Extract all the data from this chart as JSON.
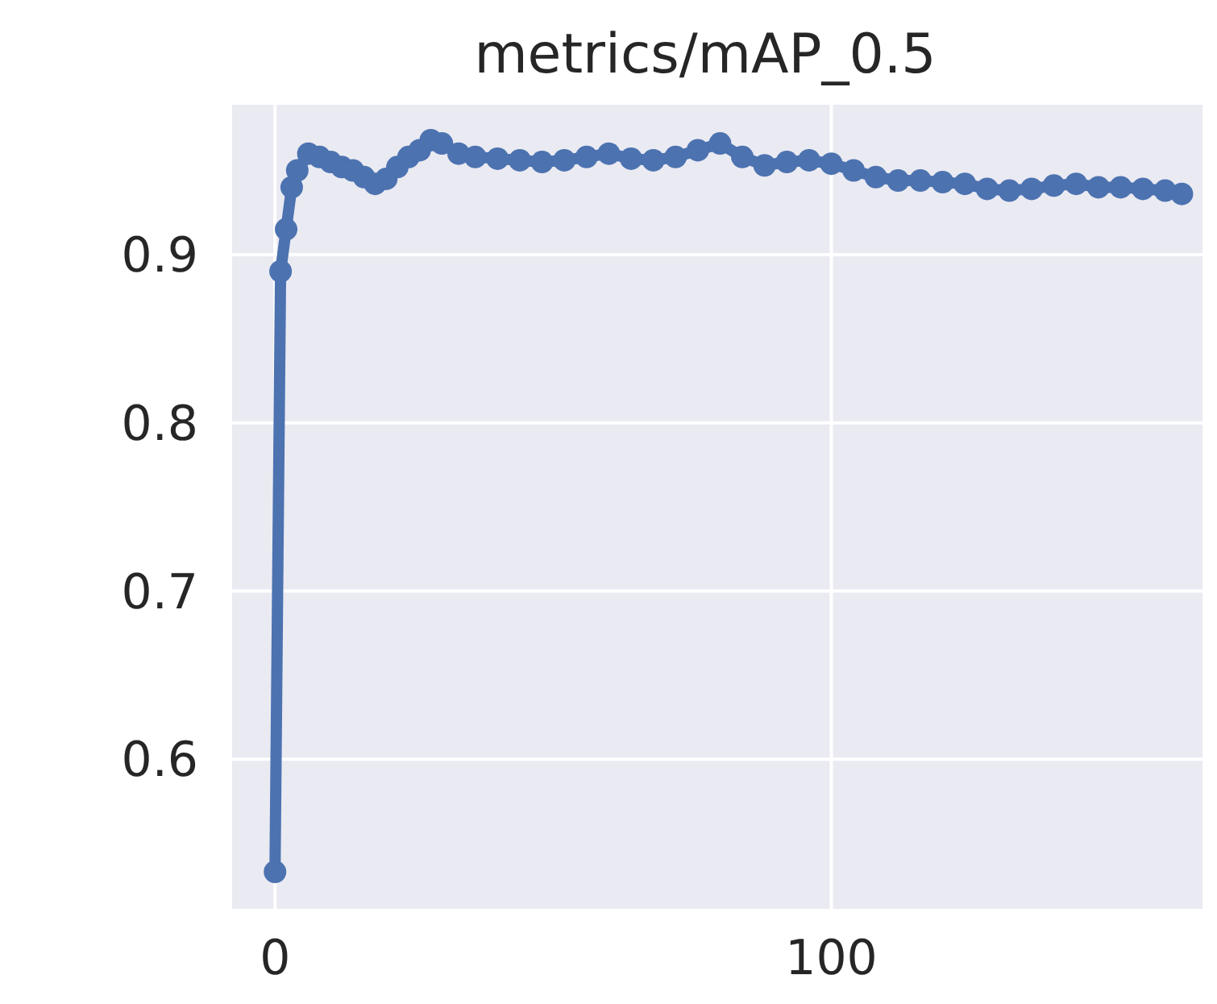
{
  "chart_data": {
    "type": "line",
    "title": "metrics/mAP_0.5",
    "x": [
      0,
      1,
      2,
      3,
      4,
      6,
      8,
      10,
      12,
      14,
      16,
      18,
      20,
      22,
      24,
      26,
      28,
      30,
      33,
      36,
      40,
      44,
      48,
      52,
      56,
      60,
      64,
      68,
      72,
      76,
      80,
      84,
      88,
      92,
      96,
      100,
      104,
      108,
      112,
      116,
      120,
      124,
      128,
      132,
      136,
      140,
      144,
      148,
      152,
      156,
      160,
      163
    ],
    "series": [
      {
        "color": "#4c72b0",
        "values": [
          0.533,
          0.89,
          0.915,
          0.94,
          0.95,
          0.96,
          0.958,
          0.955,
          0.952,
          0.95,
          0.946,
          0.942,
          0.945,
          0.952,
          0.958,
          0.962,
          0.968,
          0.966,
          0.96,
          0.958,
          0.957,
          0.956,
          0.955,
          0.956,
          0.958,
          0.96,
          0.957,
          0.956,
          0.958,
          0.962,
          0.966,
          0.958,
          0.953,
          0.955,
          0.956,
          0.954,
          0.95,
          0.946,
          0.944,
          0.944,
          0.943,
          0.942,
          0.939,
          0.938,
          0.939,
          0.941,
          0.942,
          0.94,
          0.94,
          0.939,
          0.938,
          0.936
        ]
      }
    ],
    "xlim": [
      -8,
      167
    ],
    "xticks": [
      0,
      100
    ],
    "ylim": [
      0.51,
      0.99
    ],
    "yticks": [
      0.6,
      0.7,
      0.8,
      0.9
    ],
    "grid": true,
    "marker": "circle",
    "line_style": "solid"
  }
}
